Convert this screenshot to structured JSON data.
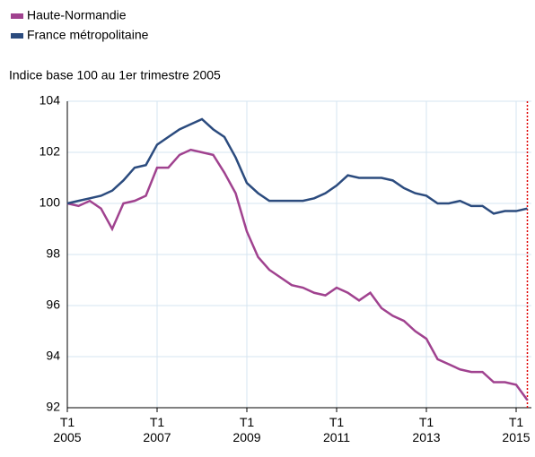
{
  "chart_data": {
    "type": "line",
    "subtitle": "Indice base 100 au 1er trimestre 2005",
    "categories": [
      "T1 2005",
      null,
      null,
      null,
      null,
      null,
      null,
      null,
      "T1 2007",
      null,
      null,
      null,
      null,
      null,
      null,
      null,
      "T1 2009",
      null,
      null,
      null,
      null,
      null,
      null,
      null,
      "T1 2011",
      null,
      null,
      null,
      null,
      null,
      null,
      null,
      "T1 2013",
      null,
      null,
      null,
      null,
      null,
      null,
      null,
      "T1 2015",
      null
    ],
    "series": [
      {
        "name": "Haute-Normandie",
        "color": "#a0428f",
        "values": [
          100,
          99.9,
          100.1,
          99.8,
          99.0,
          100.0,
          100.1,
          100.3,
          101.4,
          101.4,
          101.9,
          102.1,
          102.0,
          101.9,
          101.2,
          100.4,
          98.9,
          97.9,
          97.4,
          97.1,
          96.8,
          96.7,
          96.5,
          96.4,
          96.7,
          96.5,
          96.2,
          96.5,
          95.9,
          95.6,
          95.4,
          95.0,
          94.7,
          93.9,
          93.7,
          93.5,
          93.4,
          93.4,
          93.0,
          93.0,
          92.9,
          92.3
        ]
      },
      {
        "name": "France métropolitaine",
        "color": "#2b4b7e",
        "values": [
          100,
          100.1,
          100.2,
          100.3,
          100.5,
          100.9,
          101.4,
          101.5,
          102.3,
          102.6,
          102.9,
          103.1,
          103.3,
          102.9,
          102.6,
          101.8,
          100.8,
          100.4,
          100.1,
          100.1,
          100.1,
          100.1,
          100.2,
          100.4,
          100.7,
          101.1,
          101.0,
          101.0,
          101.0,
          100.9,
          100.6,
          100.4,
          100.3,
          100.0,
          100.0,
          100.1,
          99.9,
          99.9,
          99.6,
          99.7,
          99.7,
          99.8
        ]
      }
    ],
    "ylim": [
      92,
      104
    ],
    "yticks": [
      92,
      94,
      96,
      98,
      100,
      102,
      104
    ],
    "grid": true
  }
}
